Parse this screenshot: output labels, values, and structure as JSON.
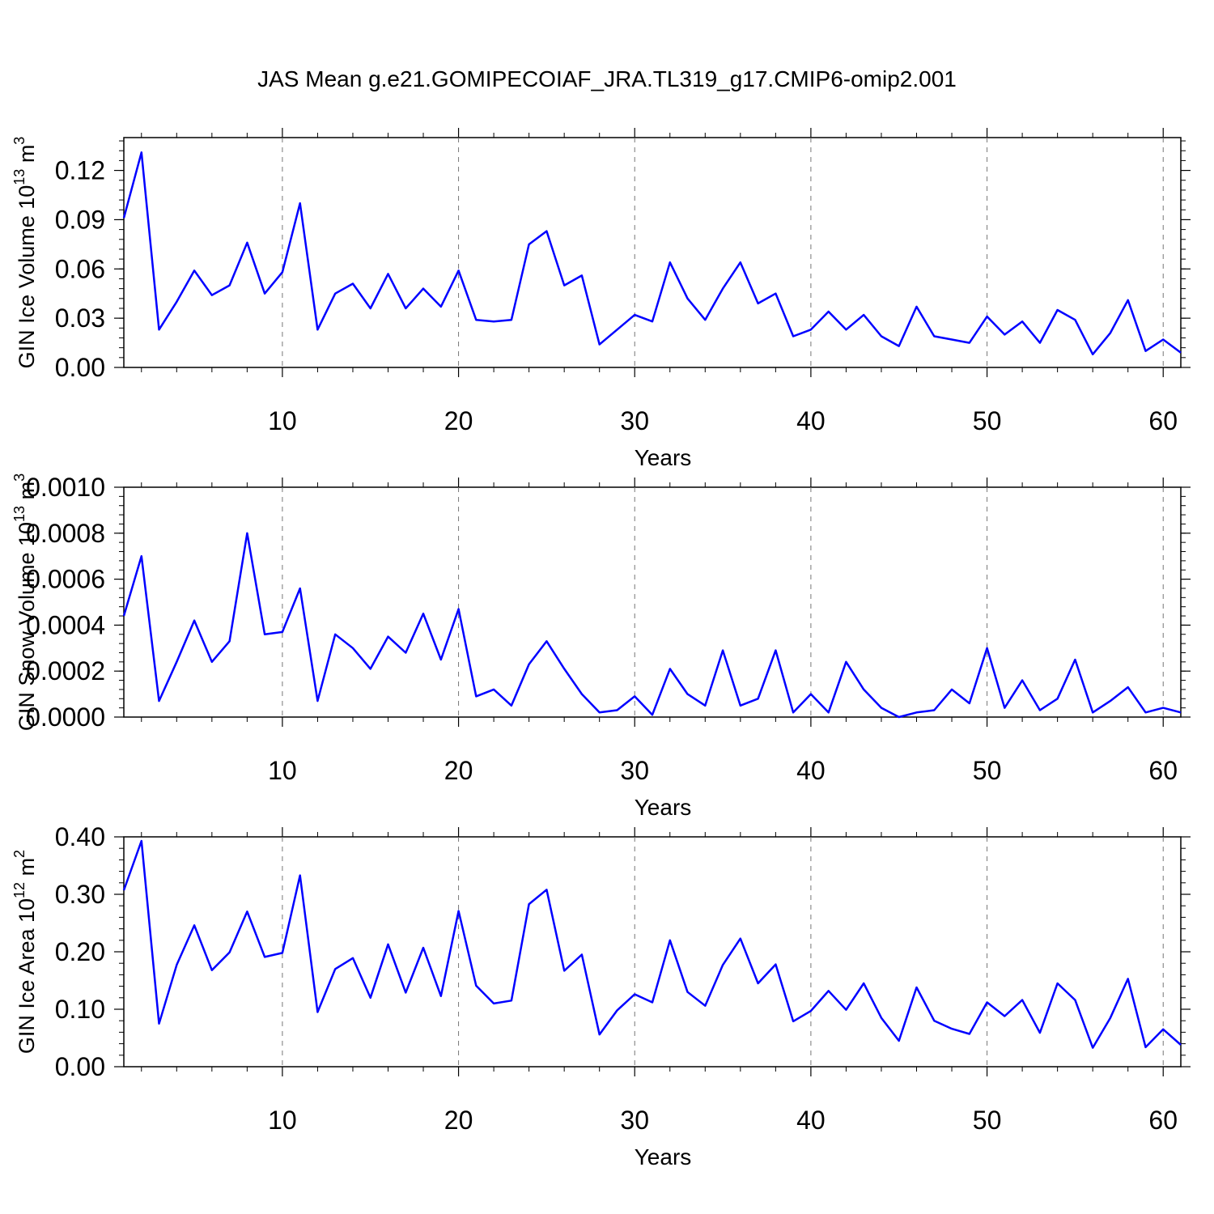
{
  "figure": {
    "title": "JAS Mean g.e21.GOMIPECOIAF_JRA.TL319_g17.CMIP6-omip2.001"
  },
  "colors": {
    "series": "#0000ff",
    "grid": "#777777",
    "axis": "#000000"
  },
  "chart_data": [
    {
      "type": "line",
      "title": "",
      "ylabel": "GIN Ice Volume 10",
      "ylabel_sup": "13",
      "ylabel_unit": " m",
      "ylabel_unit_sup": "3",
      "xlabel": "Years",
      "xlim": [
        1,
        61
      ],
      "ylim": [
        0,
        0.14
      ],
      "xticks": [
        10,
        20,
        30,
        40,
        50,
        60
      ],
      "yticks": [
        0.0,
        0.03,
        0.06,
        0.09,
        0.12
      ],
      "ytick_labels": [
        "0.00",
        "0.03",
        "0.06",
        "0.09",
        "0.12"
      ],
      "grid": "vertical dashed at x ticks",
      "series": [
        {
          "x": [
            1,
            2,
            3,
            4,
            5,
            6,
            7,
            8,
            9,
            10,
            11,
            12,
            13,
            14,
            15,
            16,
            17,
            18,
            19,
            20,
            21,
            22,
            23,
            24,
            25,
            26,
            27,
            28,
            29,
            30,
            31,
            32,
            33,
            34,
            35,
            36,
            37,
            38,
            39,
            40,
            41,
            42,
            43,
            44,
            45,
            46,
            47,
            48,
            49,
            50,
            51,
            52,
            53,
            54,
            55,
            56,
            57,
            58,
            59,
            60,
            61
          ],
          "values": [
            0.091,
            0.131,
            0.023,
            0.04,
            0.059,
            0.044,
            0.05,
            0.076,
            0.045,
            0.058,
            0.1,
            0.023,
            0.045,
            0.051,
            0.036,
            0.057,
            0.036,
            0.048,
            0.037,
            0.059,
            0.029,
            0.028,
            0.029,
            0.075,
            0.083,
            0.05,
            0.056,
            0.014,
            0.023,
            0.032,
            0.028,
            0.064,
            0.042,
            0.029,
            0.048,
            0.064,
            0.039,
            0.045,
            0.019,
            0.023,
            0.034,
            0.023,
            0.032,
            0.019,
            0.013,
            0.037,
            0.019,
            0.017,
            0.015,
            0.031,
            0.02,
            0.028,
            0.015,
            0.035,
            0.029,
            0.008,
            0.021,
            0.041,
            0.01,
            0.017,
            0.009
          ]
        }
      ]
    },
    {
      "type": "line",
      "title": "",
      "ylabel": "GIN Snow Volume 10",
      "ylabel_sup": "13",
      "ylabel_unit": " m",
      "ylabel_unit_sup": "3",
      "xlabel": "Years",
      "xlim": [
        1,
        61
      ],
      "ylim": [
        0,
        0.001
      ],
      "xticks": [
        10,
        20,
        30,
        40,
        50,
        60
      ],
      "yticks": [
        0.0,
        0.0002,
        0.0004,
        0.0006,
        0.0008,
        0.001
      ],
      "ytick_labels": [
        "0.0000",
        "0.0002",
        "0.0004",
        "0.0006",
        "0.0008",
        "0.0010"
      ],
      "grid": "vertical dashed at x ticks",
      "series": [
        {
          "x": [
            1,
            2,
            3,
            4,
            5,
            6,
            7,
            8,
            9,
            10,
            11,
            12,
            13,
            14,
            15,
            16,
            17,
            18,
            19,
            20,
            21,
            22,
            23,
            24,
            25,
            26,
            27,
            28,
            29,
            30,
            31,
            32,
            33,
            34,
            35,
            36,
            37,
            38,
            39,
            40,
            41,
            42,
            43,
            44,
            45,
            46,
            47,
            48,
            49,
            50,
            51,
            52,
            53,
            54,
            55,
            56,
            57,
            58,
            59,
            60,
            61
          ],
          "values": [
            0.00044,
            0.0007,
            7e-05,
            0.00024,
            0.00042,
            0.00024,
            0.00033,
            0.0008,
            0.00036,
            0.00037,
            0.00056,
            7e-05,
            0.00036,
            0.0003,
            0.00021,
            0.00035,
            0.00028,
            0.00045,
            0.00025,
            0.00047,
            9e-05,
            0.00012,
            5e-05,
            0.00023,
            0.00033,
            0.00021,
            0.0001,
            2e-05,
            3e-05,
            9e-05,
            1e-05,
            0.00021,
            0.0001,
            5e-05,
            0.00029,
            5e-05,
            8e-05,
            0.00029,
            2e-05,
            0.0001,
            2e-05,
            0.00024,
            0.00012,
            4e-05,
            0.0,
            2e-05,
            3e-05,
            0.00012,
            6e-05,
            0.0003,
            4e-05,
            0.00016,
            3e-05,
            8e-05,
            0.00025,
            2e-05,
            7e-05,
            0.00013,
            2e-05,
            4e-05,
            2e-05
          ]
        }
      ]
    },
    {
      "type": "line",
      "title": "",
      "ylabel": "GIN Ice Area 10",
      "ylabel_sup": "12",
      "ylabel_unit": " m",
      "ylabel_unit_sup": "2",
      "xlabel": "Years",
      "xlim": [
        1,
        61
      ],
      "ylim": [
        0,
        0.4
      ],
      "xticks": [
        10,
        20,
        30,
        40,
        50,
        60
      ],
      "yticks": [
        0.0,
        0.1,
        0.2,
        0.3,
        0.4
      ],
      "ytick_labels": [
        "0.00",
        "0.10",
        "0.20",
        "0.30",
        "0.40"
      ],
      "grid": "vertical dashed at x ticks",
      "series": [
        {
          "x": [
            1,
            2,
            3,
            4,
            5,
            6,
            7,
            8,
            9,
            10,
            11,
            12,
            13,
            14,
            15,
            16,
            17,
            18,
            19,
            20,
            21,
            22,
            23,
            24,
            25,
            26,
            27,
            28,
            29,
            30,
            31,
            32,
            33,
            34,
            35,
            36,
            37,
            38,
            39,
            40,
            41,
            42,
            43,
            44,
            45,
            46,
            47,
            48,
            49,
            50,
            51,
            52,
            53,
            54,
            55,
            56,
            57,
            58,
            59,
            60,
            61
          ],
          "values": [
            0.307,
            0.393,
            0.075,
            0.177,
            0.246,
            0.168,
            0.199,
            0.27,
            0.191,
            0.198,
            0.333,
            0.095,
            0.17,
            0.189,
            0.12,
            0.213,
            0.129,
            0.207,
            0.123,
            0.271,
            0.141,
            0.11,
            0.115,
            0.283,
            0.308,
            0.167,
            0.195,
            0.056,
            0.098,
            0.126,
            0.112,
            0.22,
            0.13,
            0.106,
            0.177,
            0.223,
            0.145,
            0.178,
            0.079,
            0.097,
            0.132,
            0.099,
            0.145,
            0.085,
            0.045,
            0.138,
            0.08,
            0.066,
            0.057,
            0.112,
            0.088,
            0.116,
            0.059,
            0.145,
            0.116,
            0.033,
            0.085,
            0.153,
            0.034,
            0.065,
            0.038
          ]
        }
      ]
    }
  ]
}
